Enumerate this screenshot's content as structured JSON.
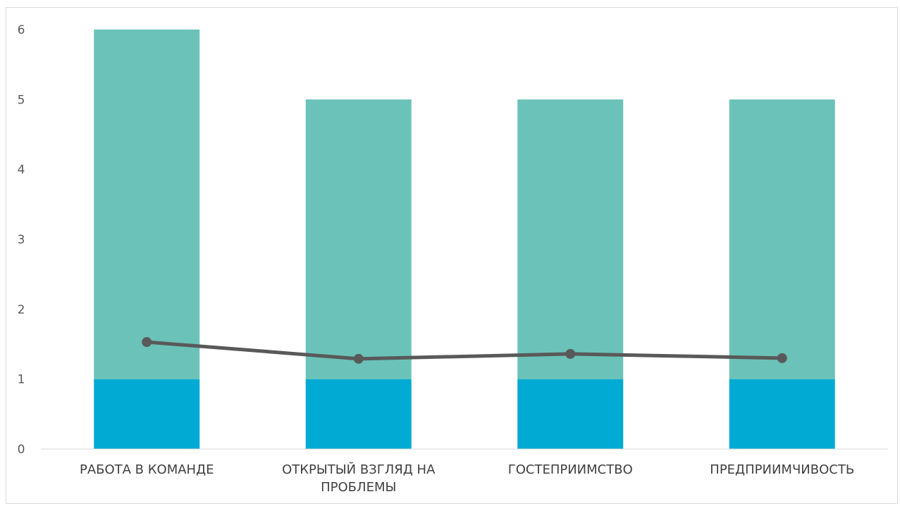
{
  "chart_data": {
    "type": "bar",
    "stacked": true,
    "categories": [
      "РАБОТА В КОМАНДЕ",
      "ОТКРЫТЫЙ ВЗГЛЯД НА ПРОБЛЕМЫ",
      "ГОСТЕПРИИМСТВО",
      "ПРЕДПРИИМЧИВОСТЬ"
    ],
    "category_lines": [
      [
        "РАБОТА В КОМАНДЕ"
      ],
      [
        "ОТКРЫТЫЙ ВЗГЛЯД НА",
        "ПРОБЛЕМЫ"
      ],
      [
        "ГОСТЕПРИИМСТВО"
      ],
      [
        "ПРЕДПРИИМЧИВОСТЬ"
      ]
    ],
    "series": [
      {
        "type": "bar",
        "values": [
          1,
          1,
          1,
          1
        ],
        "color": "#00AAD2"
      },
      {
        "type": "bar",
        "values": [
          5,
          4,
          4,
          4
        ],
        "color": "#6BC2B8"
      },
      {
        "type": "line",
        "values": [
          1.53,
          1.29,
          1.36,
          1.3
        ],
        "color": "#595959"
      }
    ],
    "yticks": [
      0,
      1,
      2,
      3,
      4,
      5,
      6
    ],
    "ylim": [
      0,
      6
    ],
    "grid": false,
    "title": "",
    "xlabel": "",
    "ylabel": ""
  }
}
